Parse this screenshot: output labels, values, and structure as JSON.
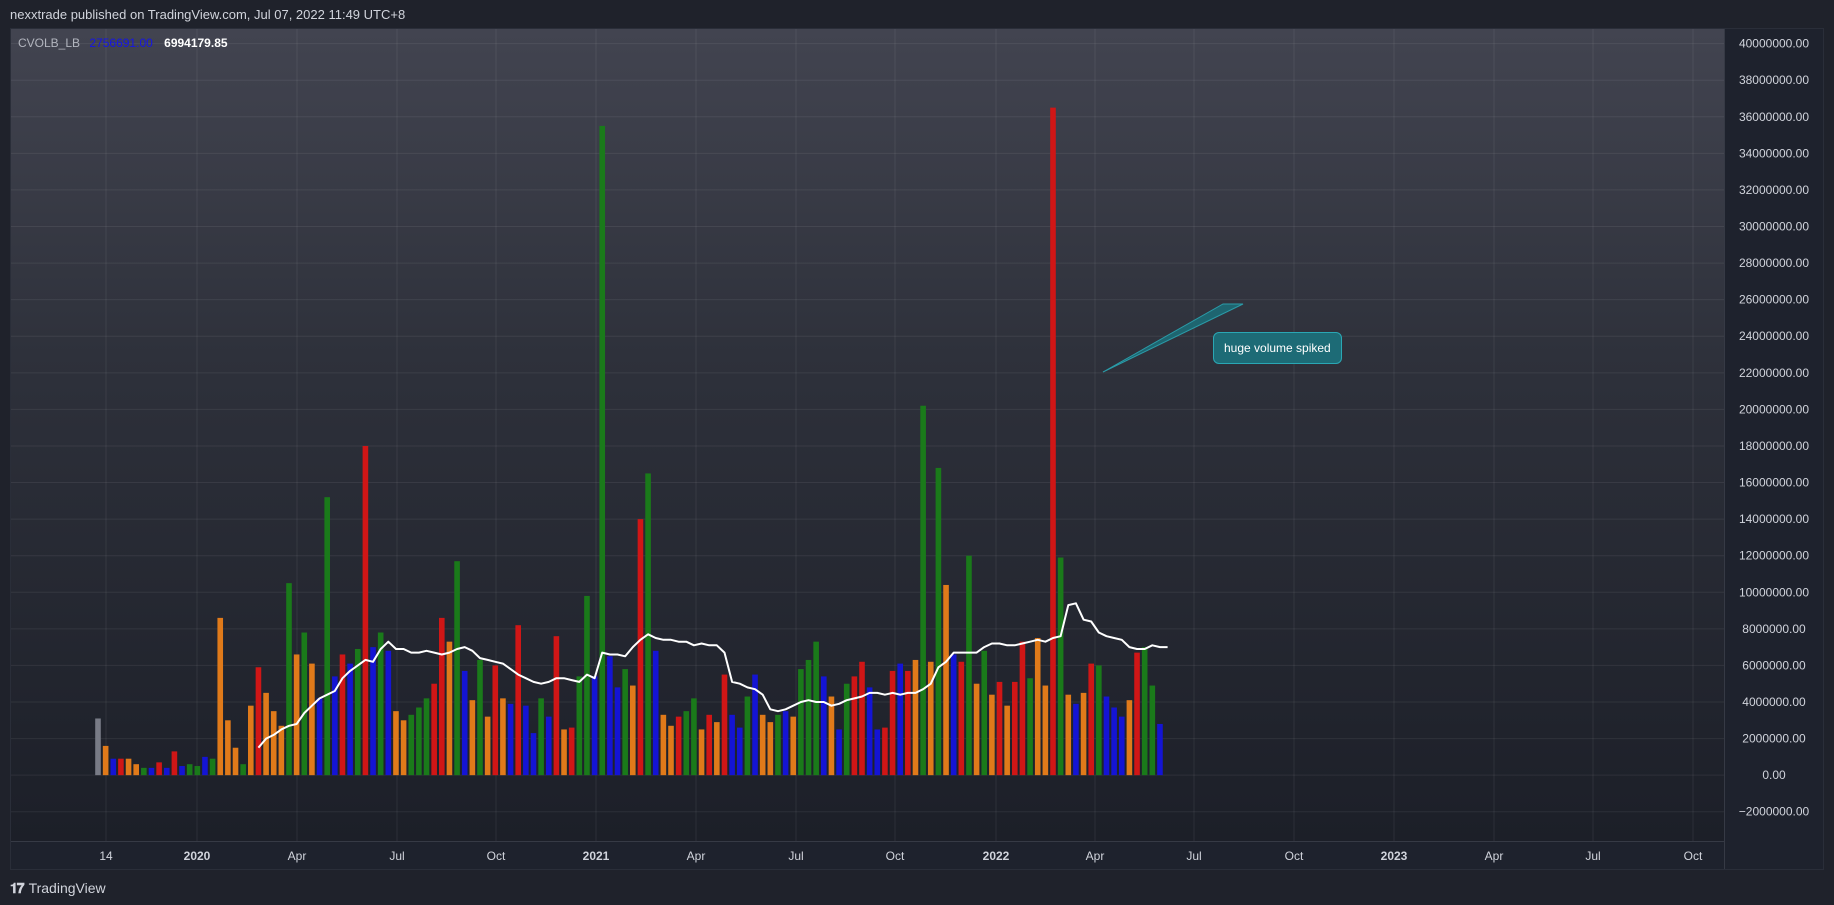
{
  "header": {
    "publish_info": "nexxtrade published on TradingView.com, Jul 07, 2022 11:49 UTC+8"
  },
  "legend": {
    "indicator_name": "CVOLB_LB",
    "value_1": "2756691.00",
    "value_2": "6994179.85"
  },
  "annotation": {
    "text": "huge volume spiked"
  },
  "footer": {
    "brand": "TradingView",
    "logo_icon": "tradingview-logo-icon"
  },
  "colors": {
    "bull_high": "#1a7a1a",
    "bear_high": "#d01616",
    "bull_low": "#1414d4",
    "bear_low": "#e07a1a",
    "neutral": "#787b86",
    "moving_average": "#ffffff",
    "annotation_bg": "#1d6b76"
  },
  "chart_data": {
    "type": "bar",
    "title": "",
    "ylim": [
      -3600000,
      40800000
    ],
    "y_ticks": [
      "40000000.00",
      "38000000.00",
      "36000000.00",
      "34000000.00",
      "32000000.00",
      "30000000.00",
      "28000000.00",
      "26000000.00",
      "24000000.00",
      "22000000.00",
      "20000000.00",
      "18000000.00",
      "16000000.00",
      "14000000.00",
      "12000000.00",
      "10000000.00",
      "8000000.00",
      "6000000.00",
      "4000000.00",
      "2000000.00",
      "0.00",
      "−2000000.00"
    ],
    "x_ticks": [
      "14",
      "2020",
      "Apr",
      "Jul",
      "Oct",
      "2021",
      "Apr",
      "Jul",
      "Oct",
      "2022",
      "Apr",
      "Jul",
      "Oct",
      "2023",
      "Apr",
      "Jul",
      "Oct"
    ],
    "x_ticks_bold": [
      "2020",
      "2021",
      "2022",
      "2023"
    ],
    "bar_interval": "weekly",
    "first_bar_week": "2019-10-14",
    "series": [
      {
        "role": "volume",
        "values": [
          3100000,
          1600000,
          900000,
          900000,
          900000,
          600000,
          400000,
          400000,
          700000,
          400000,
          1300000,
          500000,
          600000,
          500000,
          1000000,
          900000,
          8600000,
          3000000,
          1500000,
          600000,
          3800000,
          5900000,
          4500000,
          3500000,
          2700000,
          10500000,
          6600000,
          7800000,
          6100000,
          4200000,
          15200000,
          5400000,
          6600000,
          6100000,
          6900000,
          18000000,
          7000000,
          7800000,
          6800000,
          3500000,
          3000000,
          3300000,
          3700000,
          4200000,
          5000000,
          8600000,
          7300000,
          11700000,
          5700000,
          4100000,
          6300000,
          3200000,
          6000000,
          4200000,
          3900000,
          8200000,
          3800000,
          2300000,
          4200000,
          3200000,
          7600000,
          2500000,
          2600000,
          5400000,
          9800000,
          5400000,
          35500000,
          6500000,
          4800000,
          5800000,
          4900000,
          14000000,
          16500000,
          6800000,
          3300000,
          2700000,
          3200000,
          3500000,
          4200000,
          2500000,
          3300000,
          2900000,
          5500000,
          3300000,
          2600000,
          4300000,
          5500000,
          3300000,
          2900000,
          3300000,
          3500000,
          3200000,
          5800000,
          6300000,
          7300000,
          5400000,
          4300000,
          2500000,
          5000000,
          5400000,
          6200000,
          4800000,
          2500000,
          2600000,
          5700000,
          6100000,
          5700000,
          6300000,
          20200000,
          6200000,
          16800000,
          10400000,
          6600000,
          6200000,
          12000000,
          5000000,
          6800000,
          4400000,
          5100000,
          3800000,
          5100000,
          7300000,
          5300000,
          7500000,
          4900000,
          36500000,
          11900000,
          4400000,
          3900000,
          4500000,
          6100000,
          6000000,
          4300000,
          3700000,
          3200000,
          4100000,
          6700000,
          7000000,
          4900000,
          2800000
        ],
        "colors": [
          "neutral",
          "bear_low",
          "bull_low",
          "bear_high",
          "bear_low",
          "bear_low",
          "bull_high",
          "bull_low",
          "bear_high",
          "bull_low",
          "bear_high",
          "bull_low",
          "bull_high",
          "bull_high",
          "bull_low",
          "bull_high",
          "bear_low",
          "bear_low",
          "bear_low",
          "bull_high",
          "bear_low",
          "bear_high",
          "bear_low",
          "bear_low",
          "bear_low",
          "bull_high",
          "bear_low",
          "bull_high",
          "bear_low",
          "bull_low",
          "bull_high",
          "bull_low",
          "bear_high",
          "bull_low",
          "bull_high",
          "bear_high",
          "bull_low",
          "bull_high",
          "bull_low",
          "bear_low",
          "bear_low",
          "bull_high",
          "bull_high",
          "bull_high",
          "bear_high",
          "bear_high",
          "bear_low",
          "bull_high",
          "bull_low",
          "bear_low",
          "bull_high",
          "bear_low",
          "bear_high",
          "bear_low",
          "bull_low",
          "bear_high",
          "bull_low",
          "bull_low",
          "bull_high",
          "bull_low",
          "bear_high",
          "bear_low",
          "bear_high",
          "bull_high",
          "bull_high",
          "bull_low",
          "bull_high",
          "bull_low",
          "bull_low",
          "bull_high",
          "bear_low",
          "bear_high",
          "bull_high",
          "bull_low",
          "bear_low",
          "bear_low",
          "bear_high",
          "bull_high",
          "bull_high",
          "bear_low",
          "bear_high",
          "bear_low",
          "bear_high",
          "bull_low",
          "bull_low",
          "bull_high",
          "bull_low",
          "bear_low",
          "bear_low",
          "bull_high",
          "bull_low",
          "bear_low",
          "bull_high",
          "bull_high",
          "bull_high",
          "bull_low",
          "bear_low",
          "bull_low",
          "bull_high",
          "bear_high",
          "bear_high",
          "bull_low",
          "bull_low",
          "bear_high",
          "bear_high",
          "bull_low",
          "bear_high",
          "bear_low",
          "bull_high",
          "bear_low",
          "bull_high",
          "bear_low",
          "bull_low",
          "bear_high",
          "bull_high",
          "bear_low",
          "bull_high",
          "bear_low",
          "bear_high",
          "bear_low",
          "bear_high",
          "bear_high",
          "bull_high",
          "bear_low",
          "bear_low",
          "bear_high",
          "bull_high",
          "bear_low",
          "bull_low",
          "bear_low",
          "bear_high",
          "bull_high",
          "bull_low",
          "bull_low",
          "bull_low",
          "bear_low",
          "bear_high",
          "bull_high",
          "bull_high",
          "bull_low",
          "bull_low"
        ]
      },
      {
        "role": "moving_average",
        "start_index": 21,
        "values": [
          1500000,
          2000000,
          2200000,
          2500000,
          2700000,
          2800000,
          3400000,
          3800000,
          4200000,
          4400000,
          4600000,
          5300000,
          5700000,
          6000000,
          6300000,
          6200000,
          6900000,
          7300000,
          6900000,
          6900000,
          6700000,
          6700000,
          6800000,
          6700000,
          6600000,
          6700000,
          6900000,
          7000000,
          6800000,
          6400000,
          6300000,
          6200000,
          6100000,
          5800000,
          5500000,
          5300000,
          5100000,
          5000000,
          5100000,
          5300000,
          5300000,
          5200000,
          5100000,
          5500000,
          5300000,
          6700000,
          6600000,
          6600000,
          6500000,
          7000000,
          7400000,
          7700000,
          7500000,
          7400000,
          7400000,
          7300000,
          7300000,
          7100000,
          7200000,
          7100000,
          7100000,
          6700000,
          5100000,
          5000000,
          4800000,
          4700000,
          4400000,
          3600000,
          3500000,
          3600000,
          3800000,
          4000000,
          4100000,
          4000000,
          4000000,
          3800000,
          3900000,
          4100000,
          4200000,
          4300000,
          4500000,
          4500000,
          4400000,
          4500000,
          4400000,
          4500000,
          4500000,
          4700000,
          5000000,
          5900000,
          6200000,
          6700000,
          6700000,
          6700000,
          6700000,
          7000000,
          7200000,
          7200000,
          7100000,
          7100000,
          7200000,
          7300000,
          7400000,
          7300000,
          7500000,
          7600000,
          9300000,
          9400000,
          8500000,
          8400000,
          7800000,
          7600000,
          7500000,
          7400000,
          7000000,
          6900000,
          6900000,
          7100000,
          7000000,
          7000000
        ]
      }
    ]
  }
}
